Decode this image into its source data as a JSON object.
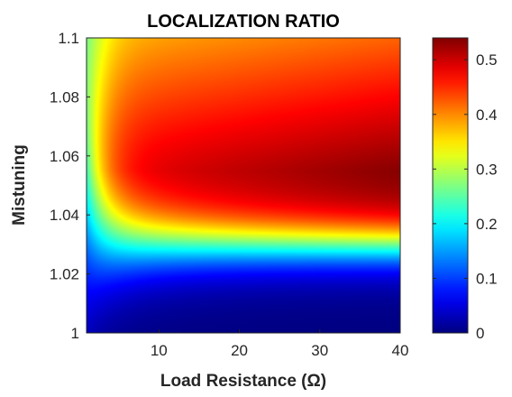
{
  "chart_data": {
    "type": "heatmap",
    "title": "LOCALIZATION RATIO",
    "xlabel": "Load Resistance (Ω)",
    "ylabel": "Mistuning",
    "xlim": [
      1,
      40
    ],
    "ylim": [
      1,
      1.1
    ],
    "x_ticks": [
      {
        "value": 10,
        "label": "10"
      },
      {
        "value": 20,
        "label": "20"
      },
      {
        "value": 30,
        "label": "30"
      },
      {
        "value": 40,
        "label": "40"
      }
    ],
    "y_ticks": [
      {
        "value": 1,
        "label": "1"
      },
      {
        "value": 1.02,
        "label": "1.02"
      },
      {
        "value": 1.04,
        "label": "1.04"
      },
      {
        "value": 1.06,
        "label": "1.06"
      },
      {
        "value": 1.08,
        "label": "1.08"
      },
      {
        "value": 1.1,
        "label": "1.1"
      }
    ],
    "colormap": "jet",
    "colorbar": {
      "range": [
        0,
        0.54
      ],
      "ticks": [
        {
          "value": 0,
          "label": "0"
        },
        {
          "value": 0.1,
          "label": "0.1"
        },
        {
          "value": 0.2,
          "label": "0.2"
        },
        {
          "value": 0.3,
          "label": "0.3"
        },
        {
          "value": 0.4,
          "label": "0.4"
        },
        {
          "value": 0.5,
          "label": "0.5"
        }
      ]
    },
    "field_summary": {
      "peak_mistuning": 1.055,
      "peak_value_max": 0.54,
      "minimum_value": 0.0,
      "value_at_top": 0.42
    },
    "grid": false
  }
}
